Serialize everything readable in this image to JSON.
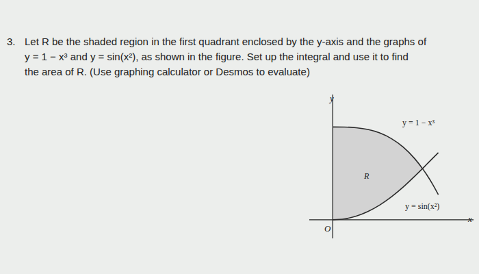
{
  "problem": {
    "number": "3.",
    "lines": [
      "Let R be the shaded region in the first quadrant enclosed by the y-axis and the graphs of",
      "y = 1 − x³ and y = sin(x²), as shown in the figure.  Set up the integral and use it to find",
      "the area of R. (Use graphing calculator or Desmos to evaluate)"
    ]
  },
  "chart_data": {
    "type": "line",
    "x_label": "x",
    "y_label": "y",
    "origin_label": "O",
    "region_label": "R",
    "color": "#d3d3d3",
    "xlim": [
      -0.2,
      1.2
    ],
    "ylim": [
      -0.2,
      1.35
    ],
    "tick_labels": false,
    "x": [
      0,
      0.1,
      0.2,
      0.3,
      0.4,
      0.5,
      0.6,
      0.7,
      0.765,
      0.8,
      0.85,
      0.9
    ],
    "series": [
      {
        "name": "y = 1 − x³",
        "color": "#2b2b2b",
        "values": [
          1,
          0.999,
          0.992,
          0.973,
          0.936,
          0.875,
          0.784,
          0.657,
          0.552,
          0.488,
          0.386,
          0.271
        ]
      },
      {
        "name": "y = sin(x²)",
        "color": "#2b2b2b",
        "values": [
          0,
          0.01,
          0.04,
          0.09,
          0.159,
          0.247,
          0.352,
          0.471,
          0.552,
          0.597,
          0.661,
          0.724
        ]
      }
    ]
  }
}
